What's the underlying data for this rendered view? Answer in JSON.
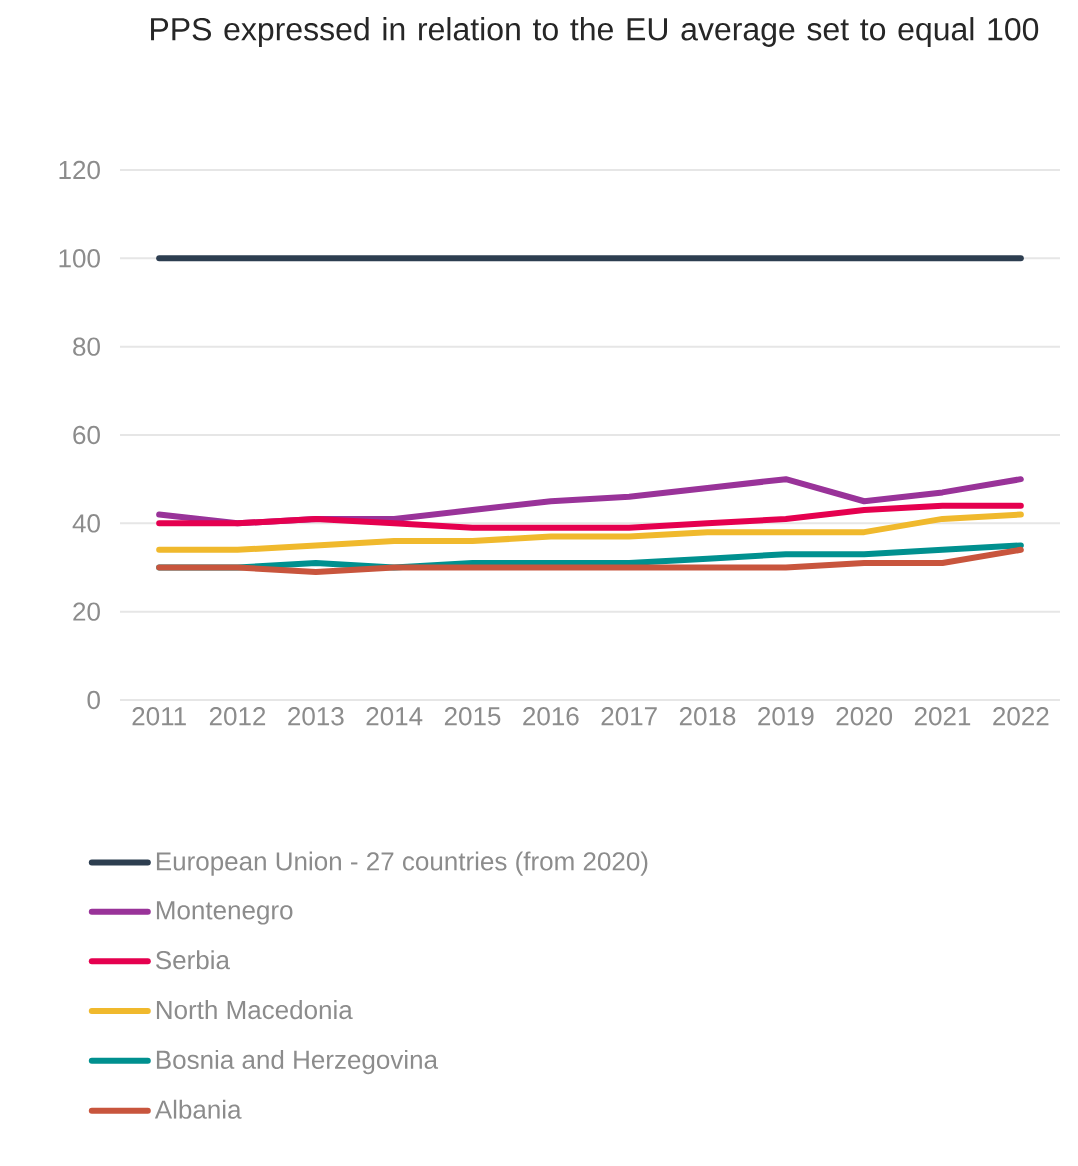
{
  "chart_data": {
    "type": "line",
    "title": "PPS expressed in relation to the EU average set to equal 100",
    "categories": [
      "2011",
      "2012",
      "2013",
      "2014",
      "2015",
      "2016",
      "2017",
      "2018",
      "2019",
      "2020",
      "2021",
      "2022"
    ],
    "series": [
      {
        "name": "European Union - 27 countries (from 2020)",
        "color": "#2d3e50",
        "values": [
          100,
          100,
          100,
          100,
          100,
          100,
          100,
          100,
          100,
          100,
          100,
          100
        ]
      },
      {
        "name": "Montenegro",
        "color": "#993399",
        "values": [
          42,
          40,
          41,
          41,
          43,
          45,
          46,
          48,
          50,
          45,
          47,
          50
        ]
      },
      {
        "name": "Serbia",
        "color": "#e5004f",
        "values": [
          40,
          40,
          41,
          40,
          39,
          39,
          39,
          40,
          41,
          43,
          44,
          44
        ]
      },
      {
        "name": "North Macedonia",
        "color": "#f0b92d",
        "values": [
          34,
          34,
          35,
          36,
          36,
          37,
          37,
          38,
          38,
          38,
          41,
          42
        ]
      },
      {
        "name": "Bosnia and Herzegovina",
        "color": "#00908f",
        "values": [
          30,
          30,
          31,
          30,
          31,
          31,
          31,
          32,
          33,
          33,
          34,
          35
        ]
      },
      {
        "name": "Albania",
        "color": "#c8553d",
        "values": [
          30,
          30,
          29,
          30,
          30,
          30,
          30,
          30,
          30,
          31,
          31,
          34
        ]
      }
    ],
    "ylim": [
      0,
      120
    ],
    "yticks": [
      0,
      20,
      40,
      60,
      80,
      100,
      120
    ],
    "grid": "y",
    "legend": "bottom",
    "marker": "none",
    "line_style": "solid"
  }
}
